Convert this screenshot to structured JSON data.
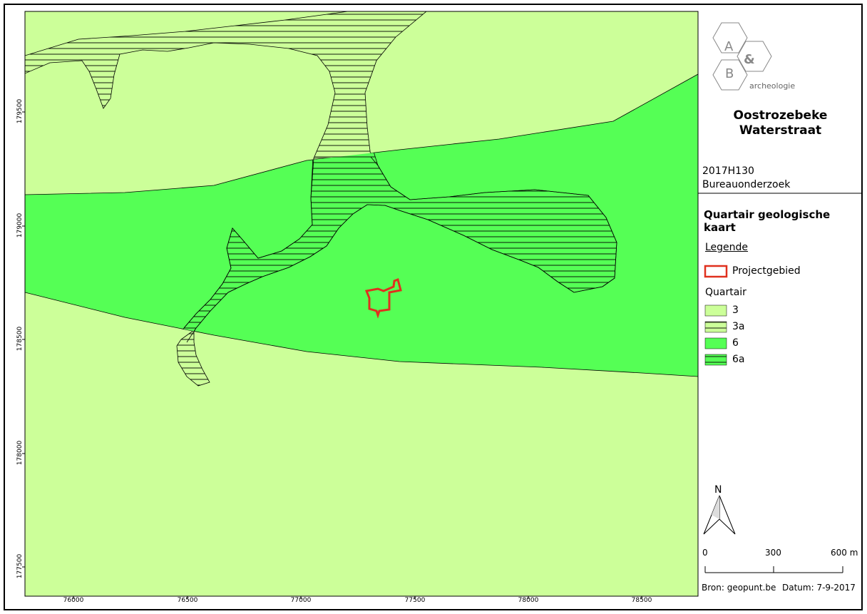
{
  "map": {
    "x_ticks": [
      "76000",
      "76500",
      "77000",
      "77500",
      "78000",
      "78500"
    ],
    "y_ticks": [
      "179500",
      "179000",
      "178500",
      "178000",
      "177500"
    ],
    "colors": {
      "unit_3": "#ccff99",
      "unit_6": "#55ff55",
      "hatch_line": "#000000",
      "project_outline": "#e0301e"
    }
  },
  "logo": {
    "letter_a": "A",
    "letter_b": "B",
    "ampersand": "&",
    "wordmark": "archeologie",
    "color": "#888888"
  },
  "title": {
    "line1": "Oostrozebeke",
    "line2": "Waterstraat"
  },
  "project": {
    "code": "2017H130",
    "type": "Bureauonderzoek"
  },
  "legend": {
    "title": "Quartair geologische kaart",
    "heading": "Legende",
    "project_area_label": "Projectgebied",
    "quartair_heading": "Quartair",
    "items": [
      {
        "label": "3",
        "color": "#ccff99",
        "hatched": false
      },
      {
        "label": "3a",
        "color": "#ccff99",
        "hatched": true
      },
      {
        "label": "6",
        "color": "#55ff55",
        "hatched": false
      },
      {
        "label": "6a",
        "color": "#55ff55",
        "hatched": true
      }
    ]
  },
  "north_arrow": {
    "label": "N",
    "icon": "north-arrow-icon"
  },
  "scale_bar": {
    "labels": [
      "0",
      "300",
      "600 m"
    ]
  },
  "footer": {
    "source": "Bron: geopunt.be",
    "date": "Datum: 7-9-2017"
  }
}
